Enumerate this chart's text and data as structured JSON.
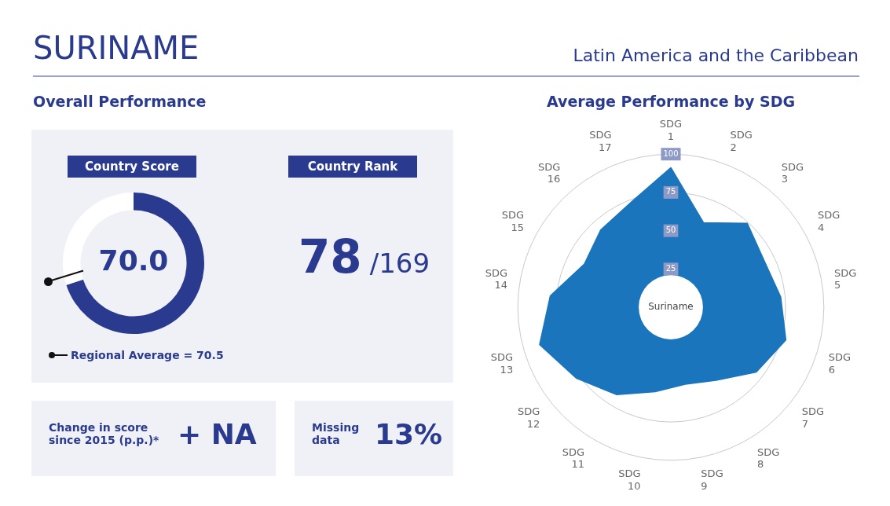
{
  "chart_data": [
    {
      "type": "donut",
      "title": "Country Score",
      "annotations": [
        "SURINAME",
        "Latin America and the Caribbean",
        "Overall Performance",
        "Regional Average = 70.5"
      ],
      "categories": [
        null,
        null
      ],
      "values": [
        70.0,
        30.0
      ],
      "colors": [
        "#2a3b8f",
        "#ffffff"
      ],
      "value_labels": [
        "70.0",
        null
      ],
      "legend": false
    },
    {
      "type": "other",
      "title": "Country Rank",
      "annotations": [
        "78",
        "/169"
      ]
    },
    {
      "type": "other",
      "annotations": [
        "Change in score since 2015 (p.p.)*",
        "+ NA"
      ]
    },
    {
      "type": "other",
      "annotations": [
        "Missing data",
        "13%"
      ]
    },
    {
      "type": "radar",
      "title": "Average Performance by SDG",
      "annotations": [
        "Suriname"
      ],
      "categories": [
        "SDG 1",
        "SDG 2",
        "SDG 3",
        "SDG 4",
        "SDG 5",
        "SDG 6",
        "SDG 7",
        "SDG 8",
        "SDG 9",
        "SDG 10",
        "SDG 11",
        "SDG 12",
        "SDG 13",
        "SDG 14",
        "SDG 15",
        "SDG 16",
        "SDG 17"
      ],
      "series": [
        {
          "color": "#1b75bc",
          "values": [
            91,
            59,
            74,
            68,
            72,
            78,
            70,
            56,
            51,
            56,
            67,
            77,
            89,
            79,
            63,
            68,
            73
          ]
        }
      ],
      "ylim": [
        0,
        100
      ],
      "yticks": [
        25,
        50,
        75,
        100
      ],
      "grid": true,
      "legend": false
    }
  ]
}
